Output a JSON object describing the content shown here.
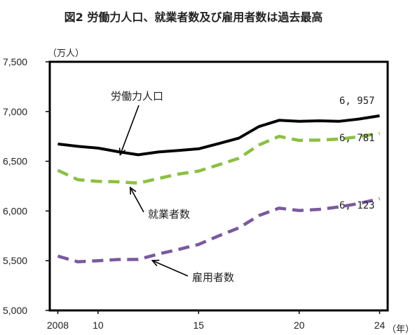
{
  "chart_data": {
    "type": "line",
    "title": "図2 労働力人口、就業者数及び雇用者数は過去最高",
    "y_unit_label": "（万人）",
    "x_unit_label": "（年）",
    "ylim": [
      5000,
      7500
    ],
    "yticks": [
      5000,
      5500,
      6000,
      6500,
      7000,
      7500
    ],
    "ytick_labels": [
      "5,000",
      "5,500",
      "6,000",
      "6,500",
      "7,000",
      "7,500"
    ],
    "xlim": [
      2007.6,
      2024.4
    ],
    "xticks": [
      2008,
      2010,
      2015,
      2020,
      2024
    ],
    "xtick_labels": [
      "2008",
      "10",
      "15",
      "20",
      "24"
    ],
    "grid": false,
    "x": [
      2008,
      2009,
      2010,
      2011,
      2012,
      2013,
      2014,
      2015,
      2016,
      2017,
      2018,
      2019,
      2020,
      2021,
      2022,
      2023,
      2024
    ],
    "series": [
      {
        "name": "労働力人口",
        "style": "solid",
        "color": "#000000",
        "values": [
          6674,
          6650,
          6632,
          6596,
          6565,
          6593,
          6609,
          6625,
          6678,
          6732,
          6849,
          6912,
          6902,
          6907,
          6902,
          6925,
          6957
        ],
        "end_label": "6, 957"
      },
      {
        "name": "就業者数",
        "style": "dashed",
        "color": "#8cbf45",
        "values": [
          6409,
          6314,
          6298,
          6293,
          6280,
          6326,
          6371,
          6401,
          6465,
          6530,
          6664,
          6750,
          6710,
          6713,
          6723,
          6747,
          6781
        ],
        "end_label": "6, 781"
      },
      {
        "name": "雇用者数",
        "style": "dashed",
        "color": "#7a5a9e",
        "values": [
          5546,
          5489,
          5500,
          5512,
          5513,
          5567,
          5613,
          5663,
          5750,
          5830,
          5954,
          6028,
          6005,
          6016,
          6041,
          6076,
          6123
        ],
        "end_label": "6, 123"
      }
    ],
    "annotations": [
      {
        "text": "労働力人口",
        "series": 0
      },
      {
        "text": "就業者数",
        "series": 1
      },
      {
        "text": "雇用者数",
        "series": 2
      }
    ]
  }
}
